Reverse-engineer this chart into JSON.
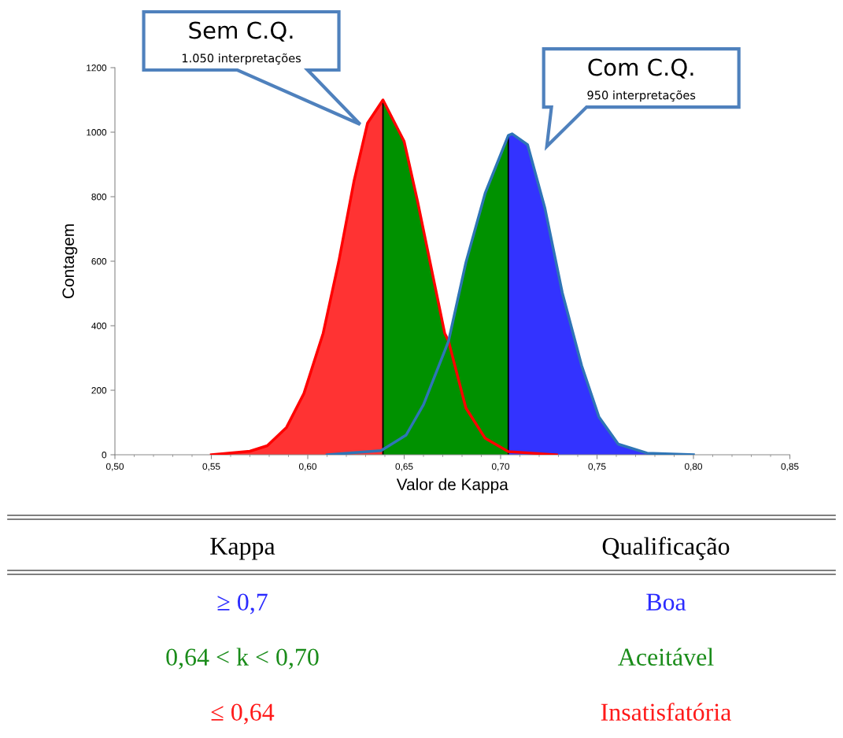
{
  "chart_data": [
    {
      "type": "line",
      "xlabel": "Valor de Kappa",
      "ylabel": "Contagem",
      "xlim": [
        0.5,
        0.85
      ],
      "xticks": [
        {
          "value": 0.5,
          "label": "0,50"
        },
        {
          "value": 0.55,
          "label": "0,55"
        },
        {
          "value": 0.6,
          "label": "0,60"
        },
        {
          "value": 0.65,
          "label": "0,65"
        },
        {
          "value": 0.7,
          "label": "0,70"
        },
        {
          "value": 0.75,
          "label": "0,75"
        },
        {
          "value": 0.8,
          "label": "0,80"
        },
        {
          "value": 0.85,
          "label": "0,85"
        }
      ],
      "ylim": [
        0,
        1200
      ],
      "yticks": [
        0,
        200,
        400,
        600,
        800,
        1000,
        1200
      ],
      "grid": false,
      "legend": false,
      "series": [
        {
          "type": "area",
          "color": "#ff3333",
          "x": [
            0.55,
            0.57,
            0.579,
            0.589,
            0.598,
            0.608,
            0.616,
            0.624,
            0.631,
            0.639
          ],
          "values": [
            0,
            11,
            28,
            85,
            190,
            377,
            597,
            849,
            1028,
            1100
          ]
        },
        {
          "type": "area",
          "color": "#009100",
          "x": [
            0.639,
            0.65,
            0.657,
            0.664,
            0.671,
            0.673,
            0.682,
            0.692,
            0.704
          ],
          "values": [
            1100,
            971,
            784,
            580,
            377,
            352,
            596,
            811,
            990
          ]
        },
        {
          "type": "area",
          "color": "#3333ff",
          "x": [
            0.704,
            0.706,
            0.714,
            0.723,
            0.732,
            0.742,
            0.751,
            0.761,
            0.776,
            0.8
          ],
          "values": [
            990,
            995,
            961,
            764,
            502,
            277,
            117,
            33,
            5,
            0
          ]
        },
        {
          "color": "#ff0000",
          "x": [
            0.55,
            0.57,
            0.579,
            0.589,
            0.598,
            0.608,
            0.616,
            0.624,
            0.631,
            0.639,
            0.65,
            0.657,
            0.664,
            0.671,
            0.673,
            0.682,
            0.692,
            0.704,
            0.729
          ],
          "values": [
            0,
            11,
            28,
            85,
            190,
            377,
            597,
            849,
            1028,
            1100,
            971,
            784,
            580,
            377,
            352,
            145,
            51,
            10,
            0
          ]
        },
        {
          "color": "#2e75b6",
          "x": [
            0.61,
            0.638,
            0.651,
            0.66,
            0.673,
            0.682,
            0.692,
            0.704,
            0.706,
            0.714,
            0.723,
            0.732,
            0.742,
            0.751,
            0.761,
            0.776,
            0.8
          ],
          "values": [
            0,
            13,
            61,
            155,
            352,
            596,
            811,
            990,
            995,
            961,
            764,
            502,
            277,
            117,
            33,
            5,
            0
          ]
        }
      ],
      "ref_lines": [
        {
          "axis": "x",
          "value": 0.639,
          "color": "#000000"
        },
        {
          "axis": "x",
          "value": 0.704,
          "color": "#000000"
        }
      ],
      "annotations": [
        "Sem C.Q.\n1.050 interpretações",
        "Com C.Q.\n950 interpretações"
      ]
    },
    {
      "type": "other",
      "categories": [
        "Kappa",
        "Qualificação"
      ],
      "cell_labels": [
        [
          "≥ 0,7",
          "Boa"
        ],
        [
          "0,64 < k < 0,70",
          "Aceitável"
        ],
        [
          "≤ 0,64",
          "Insatisfatória"
        ]
      ],
      "colors": [
        "#2b2bff",
        "#1a8c1a",
        "#ff1a1a"
      ]
    }
  ]
}
